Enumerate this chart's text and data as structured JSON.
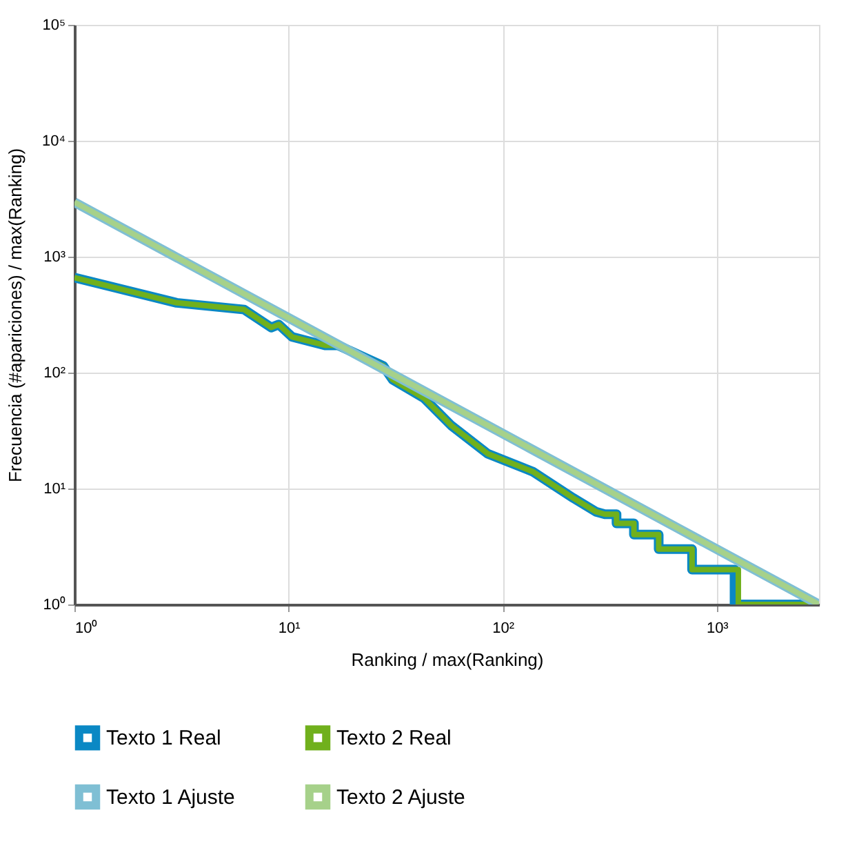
{
  "chart_data": {
    "type": "line",
    "xlabel": "Ranking / max(Ranking)",
    "ylabel": "Frecuencia (#apariciones) / max(Ranking)",
    "log": "xy",
    "grid": true,
    "legend": "bottom",
    "line_style": "solid",
    "marker": "none",
    "xlim": [
      1,
      3000
    ],
    "ylim": [
      1,
      100000
    ],
    "xticks": [
      {
        "value": 1,
        "label": "10⁰"
      },
      {
        "value": 10,
        "label": "10¹"
      },
      {
        "value": 100,
        "label": "10²"
      },
      {
        "value": 1000,
        "label": "10³"
      }
    ],
    "yticks": [
      {
        "value": 1,
        "label": "10⁰"
      },
      {
        "value": 10,
        "label": "10¹"
      },
      {
        "value": 100,
        "label": "10²"
      },
      {
        "value": 1000,
        "label": "10³"
      },
      {
        "value": 10000,
        "label": "10⁴"
      },
      {
        "value": 100000,
        "label": "10⁵"
      }
    ],
    "series": [
      {
        "name": "Texto 1 Real",
        "color": "#0a88c4",
        "x": [
          1,
          3,
          6.2,
          8.3,
          9,
          10.4,
          14.8,
          17,
          27.7,
          30.6,
          43,
          57.5,
          85,
          138,
          213,
          273,
          300,
          340,
          340,
          410,
          410,
          535,
          535,
          766,
          766,
          1210,
          1210,
          3000
        ],
        "values": [
          660,
          400,
          350,
          245,
          260,
          203,
          172,
          172,
          114,
          87,
          60,
          35,
          20,
          14,
          8.3,
          6.3,
          6,
          6,
          5,
          5,
          4,
          4,
          3,
          3,
          2,
          2,
          1,
          1
        ]
      },
      {
        "name": "Texto 2 Real",
        "color": "#70b01c",
        "x": [
          1,
          3,
          6.2,
          8.3,
          9,
          10.4,
          14.8,
          17,
          27.7,
          30.6,
          43,
          57.5,
          85,
          138,
          213,
          273,
          300,
          340,
          340,
          410,
          410,
          535,
          535,
          766,
          766,
          1260,
          1260,
          3000
        ],
        "values": [
          660,
          400,
          350,
          245,
          260,
          203,
          172,
          172,
          114,
          87,
          60,
          35,
          20,
          14,
          8.3,
          6.3,
          6,
          6,
          5,
          5,
          4,
          4,
          3,
          3,
          2,
          2,
          1,
          1
        ]
      },
      {
        "name": "Texto 1 Ajuste",
        "color": "#7fbfd4",
        "x": [
          1,
          3000
        ],
        "values": [
          2950,
          1
        ]
      },
      {
        "name": "Texto 2 Ajuste",
        "color": "#a6d18a",
        "x": [
          1,
          3000
        ],
        "values": [
          2950,
          1
        ]
      }
    ]
  }
}
